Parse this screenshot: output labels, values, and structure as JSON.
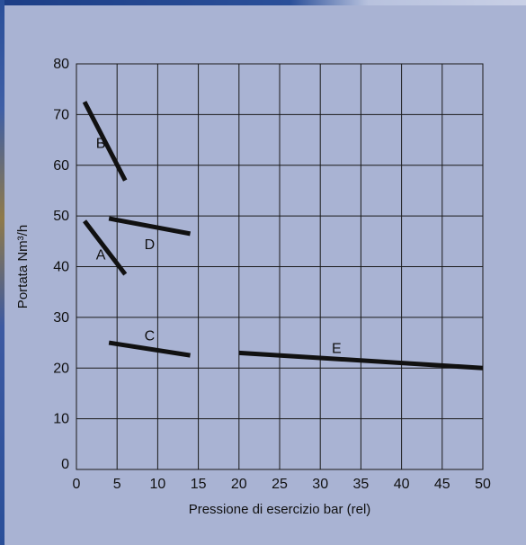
{
  "chart_data": {
    "type": "line",
    "xlabel": "Pressione di esercizio bar (rel)",
    "ylabel": "Portata Nm³/h",
    "xlim": [
      0,
      50
    ],
    "ylim": [
      0,
      80
    ],
    "x_ticks": [
      0,
      5,
      10,
      15,
      20,
      25,
      30,
      35,
      40,
      45,
      50
    ],
    "y_ticks": [
      0,
      10,
      20,
      30,
      40,
      50,
      60,
      70,
      80
    ],
    "grid": true,
    "series": [
      {
        "name": "A",
        "x": [
          1,
          6
        ],
        "y": [
          49,
          38.5
        ],
        "label_at": [
          3,
          42.5
        ]
      },
      {
        "name": "B",
        "x": [
          1,
          6
        ],
        "y": [
          72.5,
          57
        ],
        "label_at": [
          3,
          64.5
        ]
      },
      {
        "name": "C",
        "x": [
          4,
          14
        ],
        "y": [
          25,
          22.5
        ],
        "label_at": [
          9,
          26.5
        ]
      },
      {
        "name": "D",
        "x": [
          4,
          14
        ],
        "y": [
          49.5,
          46.5
        ],
        "label_at": [
          9,
          44.5
        ]
      },
      {
        "name": "E",
        "x": [
          20,
          50
        ],
        "y": [
          23,
          20
        ],
        "label_at": [
          32,
          24
        ]
      }
    ],
    "colors": {
      "line": "#111111",
      "grid": "#1a1a1a",
      "background": "#a9b3d3"
    }
  }
}
